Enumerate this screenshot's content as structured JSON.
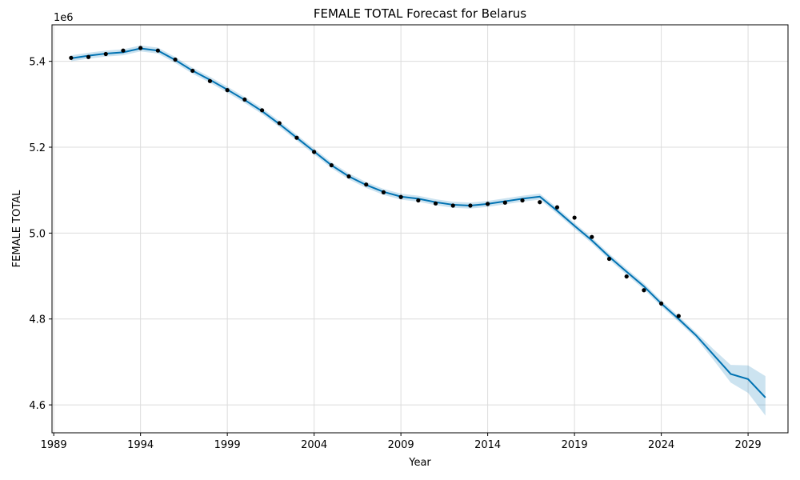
{
  "chart_data": {
    "type": "line",
    "title": "FEMALE TOTAL Forecast for Belarus",
    "xlabel": "Year",
    "ylabel": "FEMALE TOTAL",
    "y_offset_label": "1e6",
    "xlim": [
      1988.9,
      2031.3
    ],
    "ylim": [
      4.535,
      5.485
    ],
    "x_ticks": [
      1989,
      1994,
      1999,
      2004,
      2009,
      2014,
      2019,
      2024,
      2029
    ],
    "y_ticks": [
      4.6,
      4.8,
      5.0,
      5.2,
      5.4
    ],
    "y_tick_labels": [
      "4.6",
      "4.8",
      "5.0",
      "5.2",
      "5.4"
    ],
    "grid": true,
    "colors": {
      "forecast_line": "#0072B2",
      "interval_fill": "#0072B2",
      "actual_points": "#000000"
    },
    "series": [
      {
        "kind": "forecast",
        "x": [
          1990,
          1991,
          1992,
          1993,
          1994,
          1995,
          1996,
          1997,
          1998,
          1999,
          2000,
          2001,
          2002,
          2003,
          2004,
          2005,
          2006,
          2007,
          2008,
          2009,
          2010,
          2011,
          2012,
          2013,
          2014,
          2015,
          2016,
          2017,
          2018,
          2019,
          2020,
          2021,
          2022,
          2023,
          2024,
          2025,
          2026,
          2027,
          2028,
          2029,
          2030
        ],
        "y": [
          5.407,
          5.413,
          5.418,
          5.421,
          5.43,
          5.425,
          5.403,
          5.378,
          5.357,
          5.334,
          5.31,
          5.284,
          5.254,
          5.222,
          5.19,
          5.158,
          5.132,
          5.112,
          5.096,
          5.085,
          5.08,
          5.072,
          5.066,
          5.064,
          5.068,
          5.074,
          5.08,
          5.085,
          5.052,
          5.017,
          4.983,
          4.945,
          4.91,
          4.876,
          4.836,
          4.8,
          4.762,
          4.717,
          4.672,
          4.66,
          4.617
        ],
        "lower": [
          5.4,
          5.406,
          5.411,
          5.414,
          5.423,
          5.418,
          5.396,
          5.371,
          5.35,
          5.327,
          5.303,
          5.277,
          5.247,
          5.215,
          5.183,
          5.151,
          5.125,
          5.105,
          5.089,
          5.078,
          5.073,
          5.065,
          5.059,
          5.057,
          5.061,
          5.067,
          5.073,
          5.078,
          5.045,
          5.01,
          4.976,
          4.938,
          4.903,
          4.869,
          4.829,
          4.793,
          4.755,
          4.705,
          4.652,
          4.628,
          4.575
        ],
        "upper": [
          5.414,
          5.42,
          5.425,
          5.428,
          5.437,
          5.432,
          5.41,
          5.385,
          5.364,
          5.341,
          5.317,
          5.291,
          5.261,
          5.229,
          5.197,
          5.165,
          5.139,
          5.119,
          5.103,
          5.092,
          5.087,
          5.079,
          5.073,
          5.071,
          5.075,
          5.081,
          5.087,
          5.092,
          5.059,
          5.024,
          4.99,
          4.952,
          4.917,
          4.883,
          4.843,
          4.807,
          4.769,
          4.73,
          4.693,
          4.692,
          4.667
        ]
      },
      {
        "kind": "actual",
        "x": [
          1990,
          1991,
          1992,
          1993,
          1994,
          1995,
          1996,
          1997,
          1998,
          1999,
          2000,
          2001,
          2002,
          2003,
          2004,
          2005,
          2006,
          2007,
          2008,
          2009,
          2010,
          2011,
          2012,
          2013,
          2014,
          2015,
          2016,
          2017,
          2018,
          2019,
          2020,
          2021,
          2022,
          2023,
          2024,
          2025
        ],
        "y": [
          5.408,
          5.41,
          5.417,
          5.425,
          5.431,
          5.425,
          5.404,
          5.378,
          5.354,
          5.333,
          5.311,
          5.286,
          5.256,
          5.222,
          5.189,
          5.158,
          5.132,
          5.113,
          5.095,
          5.084,
          5.076,
          5.069,
          5.064,
          5.064,
          5.068,
          5.071,
          5.076,
          5.072,
          5.06,
          5.036,
          4.991,
          4.94,
          4.899,
          4.867,
          4.836,
          4.807
        ]
      }
    ]
  }
}
